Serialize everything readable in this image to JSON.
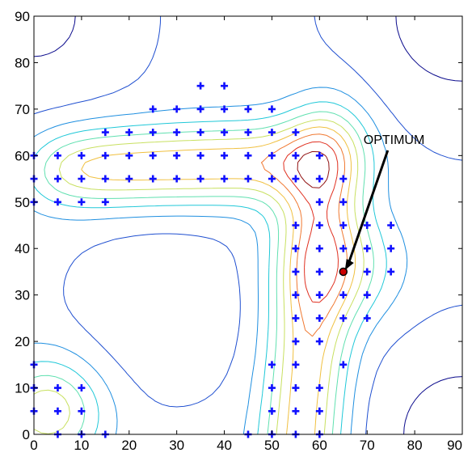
{
  "chart_data": {
    "type": "contour",
    "title": "",
    "xlabel": "",
    "ylabel": "",
    "xlim": [
      0,
      90
    ],
    "ylim": [
      0,
      90
    ],
    "xticks": [
      0,
      10,
      20,
      30,
      40,
      50,
      60,
      70,
      80,
      90
    ],
    "yticks": [
      0,
      10,
      20,
      30,
      40,
      50,
      60,
      70,
      80,
      90
    ],
    "grid": false,
    "legend": "none",
    "contour_colormap": [
      "#0a0a8c",
      "#1f4fd0",
      "#1f8fe0",
      "#20c8d8",
      "#60e0b0",
      "#c8e060",
      "#f0c040",
      "#f07830",
      "#e03020",
      "#901010"
    ],
    "marker_color": "#1010ff",
    "sample_points": [
      {
        "x": 35,
        "y": 75
      },
      {
        "x": 40,
        "y": 75
      },
      {
        "x": 25,
        "y": 70
      },
      {
        "x": 30,
        "y": 70
      },
      {
        "x": 35,
        "y": 70
      },
      {
        "x": 40,
        "y": 70
      },
      {
        "x": 45,
        "y": 70
      },
      {
        "x": 50,
        "y": 70
      },
      {
        "x": 15,
        "y": 65
      },
      {
        "x": 20,
        "y": 65
      },
      {
        "x": 25,
        "y": 65
      },
      {
        "x": 30,
        "y": 65
      },
      {
        "x": 35,
        "y": 65
      },
      {
        "x": 40,
        "y": 65
      },
      {
        "x": 45,
        "y": 65
      },
      {
        "x": 50,
        "y": 65
      },
      {
        "x": 55,
        "y": 65
      },
      {
        "x": 0,
        "y": 60
      },
      {
        "x": 5,
        "y": 60
      },
      {
        "x": 10,
        "y": 60
      },
      {
        "x": 15,
        "y": 60
      },
      {
        "x": 20,
        "y": 60
      },
      {
        "x": 25,
        "y": 60
      },
      {
        "x": 30,
        "y": 60
      },
      {
        "x": 35,
        "y": 60
      },
      {
        "x": 40,
        "y": 60
      },
      {
        "x": 45,
        "y": 60
      },
      {
        "x": 50,
        "y": 60
      },
      {
        "x": 55,
        "y": 60
      },
      {
        "x": 60,
        "y": 60
      },
      {
        "x": 0,
        "y": 55
      },
      {
        "x": 5,
        "y": 55
      },
      {
        "x": 10,
        "y": 55
      },
      {
        "x": 15,
        "y": 55
      },
      {
        "x": 20,
        "y": 55
      },
      {
        "x": 25,
        "y": 55
      },
      {
        "x": 30,
        "y": 55
      },
      {
        "x": 35,
        "y": 55
      },
      {
        "x": 40,
        "y": 55
      },
      {
        "x": 45,
        "y": 55
      },
      {
        "x": 50,
        "y": 55
      },
      {
        "x": 55,
        "y": 55
      },
      {
        "x": 60,
        "y": 55
      },
      {
        "x": 65,
        "y": 55
      },
      {
        "x": 0,
        "y": 50
      },
      {
        "x": 5,
        "y": 50
      },
      {
        "x": 10,
        "y": 50
      },
      {
        "x": 15,
        "y": 50
      },
      {
        "x": 60,
        "y": 50
      },
      {
        "x": 65,
        "y": 50
      },
      {
        "x": 55,
        "y": 45
      },
      {
        "x": 60,
        "y": 45
      },
      {
        "x": 65,
        "y": 45
      },
      {
        "x": 70,
        "y": 45
      },
      {
        "x": 75,
        "y": 45
      },
      {
        "x": 55,
        "y": 40
      },
      {
        "x": 60,
        "y": 40
      },
      {
        "x": 65,
        "y": 40
      },
      {
        "x": 70,
        "y": 40
      },
      {
        "x": 75,
        "y": 40
      },
      {
        "x": 55,
        "y": 35
      },
      {
        "x": 60,
        "y": 35
      },
      {
        "x": 70,
        "y": 35
      },
      {
        "x": 75,
        "y": 35
      },
      {
        "x": 55,
        "y": 30
      },
      {
        "x": 60,
        "y": 30
      },
      {
        "x": 65,
        "y": 30
      },
      {
        "x": 70,
        "y": 30
      },
      {
        "x": 55,
        "y": 25
      },
      {
        "x": 60,
        "y": 25
      },
      {
        "x": 65,
        "y": 25
      },
      {
        "x": 70,
        "y": 25
      },
      {
        "x": 55,
        "y": 20
      },
      {
        "x": 60,
        "y": 20
      },
      {
        "x": 50,
        "y": 15
      },
      {
        "x": 55,
        "y": 15
      },
      {
        "x": 65,
        "y": 15
      },
      {
        "x": 0,
        "y": 15
      },
      {
        "x": 0,
        "y": 10
      },
      {
        "x": 5,
        "y": 10
      },
      {
        "x": 10,
        "y": 10
      },
      {
        "x": 50,
        "y": 10
      },
      {
        "x": 55,
        "y": 10
      },
      {
        "x": 60,
        "y": 10
      },
      {
        "x": 0,
        "y": 5
      },
      {
        "x": 5,
        "y": 5
      },
      {
        "x": 10,
        "y": 5
      },
      {
        "x": 50,
        "y": 5
      },
      {
        "x": 55,
        "y": 5
      },
      {
        "x": 60,
        "y": 5
      },
      {
        "x": 5,
        "y": 0
      },
      {
        "x": 10,
        "y": 0
      },
      {
        "x": 15,
        "y": 0
      },
      {
        "x": 45,
        "y": 0
      },
      {
        "x": 50,
        "y": 0
      },
      {
        "x": 55,
        "y": 0
      },
      {
        "x": 60,
        "y": 0
      }
    ],
    "optimum": {
      "x": 65,
      "y": 35,
      "marker_color": "#cc0000"
    },
    "annotations": [
      {
        "text": "OPTIMUM",
        "point_x": 65,
        "point_y": 35
      }
    ]
  }
}
